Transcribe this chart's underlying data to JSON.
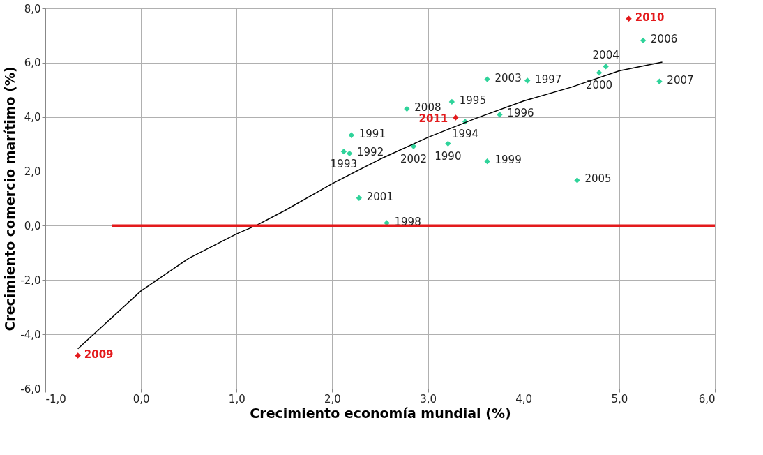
{
  "chart_data": {
    "type": "scatter",
    "xlabel": "Crecimiento economía mundial (%)",
    "ylabel": "Crecimiento comercio marítimo (%)",
    "xlim": [
      -1,
      6
    ],
    "ylim": [
      -6,
      8
    ],
    "xticks": [
      {
        "value": -1,
        "label": "-1,0"
      },
      {
        "value": 0,
        "label": "0,0"
      },
      {
        "value": 1,
        "label": "1,0"
      },
      {
        "value": 2,
        "label": "2,0"
      },
      {
        "value": 3,
        "label": "3,0"
      },
      {
        "value": 4,
        "label": "4,0"
      },
      {
        "value": 5,
        "label": "5,0"
      },
      {
        "value": 6,
        "label": "6,0"
      }
    ],
    "yticks": [
      {
        "value": -6,
        "label": "-6,0"
      },
      {
        "value": -4,
        "label": "-4,0"
      },
      {
        "value": -2,
        "label": "-2,0"
      },
      {
        "value": 0,
        "label": "0,0"
      },
      {
        "value": 2,
        "label": "2,0"
      },
      {
        "value": 4,
        "label": "4,0"
      },
      {
        "value": 6,
        "label": "6,0"
      },
      {
        "value": 8,
        "label": "8,0"
      }
    ],
    "grid": true,
    "marker": "diamond",
    "series": [
      {
        "x": [
          5.1,
          5.25,
          4.86,
          4.79,
          5.42,
          4.04,
          4.56,
          3.62,
          3.25,
          2.78,
          3.29,
          3.39,
          3.75,
          2.2,
          2.12,
          2.18,
          2.85,
          3.21,
          3.62,
          2.28,
          2.57,
          -0.66
        ],
        "values": [
          7.62,
          6.82,
          5.86,
          5.63,
          5.31,
          5.34,
          1.67,
          5.39,
          4.56,
          4.3,
          3.98,
          3.83,
          4.09,
          3.33,
          2.73,
          2.66,
          2.92,
          3.02,
          2.37,
          1.02,
          0.1,
          -4.78
        ],
        "colors": [
          "#e31a1c",
          "#2fd39a",
          "#2fd39a",
          "#2fd39a",
          "#2fd39a",
          "#2fd39a",
          "#2fd39a",
          "#2fd39a",
          "#2fd39a",
          "#2fd39a",
          "#e31a1c",
          "#2fd39a",
          "#2fd39a",
          "#2fd39a",
          "#2fd39a",
          "#2fd39a",
          "#2fd39a",
          "#2fd39a",
          "#2fd39a",
          "#2fd39a",
          "#2fd39a",
          "#e31a1c"
        ]
      },
      {
        "type": "line",
        "marker": "none",
        "color": "#000000",
        "x": [
          -0.66,
          0,
          0.5,
          1,
          1.2,
          1.5,
          2,
          2.5,
          3,
          3.5,
          4,
          4.5,
          5,
          5.45
        ],
        "values": [
          -4.53,
          -2.4,
          -1.2,
          -0.3,
          0,
          0.55,
          1.55,
          2.45,
          3.25,
          3.95,
          4.59,
          5.1,
          5.7,
          6.02
        ]
      },
      {
        "type": "line",
        "marker": "none",
        "color": "#e31a1c",
        "x": [
          -0.3,
          6
        ],
        "values": [
          0,
          0
        ]
      }
    ],
    "annotations": [
      {
        "text": "2010",
        "x": 5.1,
        "y": 7.62
      },
      {
        "text": "2006",
        "x": 5.25,
        "y": 6.82
      },
      {
        "text": "2004",
        "x": 4.86,
        "y": 5.86
      },
      {
        "text": "2000",
        "x": 4.79,
        "y": 5.63
      },
      {
        "text": "2007",
        "x": 5.42,
        "y": 5.31
      },
      {
        "text": "1997",
        "x": 4.04,
        "y": 5.34
      },
      {
        "text": "2005",
        "x": 4.56,
        "y": 1.67
      },
      {
        "text": "2003",
        "x": 3.62,
        "y": 5.39
      },
      {
        "text": "1995",
        "x": 3.25,
        "y": 4.56
      },
      {
        "text": "2008",
        "x": 2.78,
        "y": 4.3
      },
      {
        "text": "2011",
        "x": 3.29,
        "y": 3.98
      },
      {
        "text": "1994",
        "x": 3.39,
        "y": 3.83
      },
      {
        "text": "1996",
        "x": 3.75,
        "y": 4.09
      },
      {
        "text": "1991",
        "x": 2.2,
        "y": 3.33
      },
      {
        "text": "1993",
        "x": 2.12,
        "y": 2.73
      },
      {
        "text": "1992",
        "x": 2.18,
        "y": 2.66
      },
      {
        "text": "2002",
        "x": 2.85,
        "y": 2.92
      },
      {
        "text": "1990",
        "x": 3.21,
        "y": 3.02
      },
      {
        "text": "1999",
        "x": 3.62,
        "y": 2.37
      },
      {
        "text": "2001",
        "x": 2.28,
        "y": 1.02
      },
      {
        "text": "1998",
        "x": 2.57,
        "y": 0.1
      },
      {
        "text": "2009",
        "x": -0.66,
        "y": -4.78
      }
    ]
  }
}
